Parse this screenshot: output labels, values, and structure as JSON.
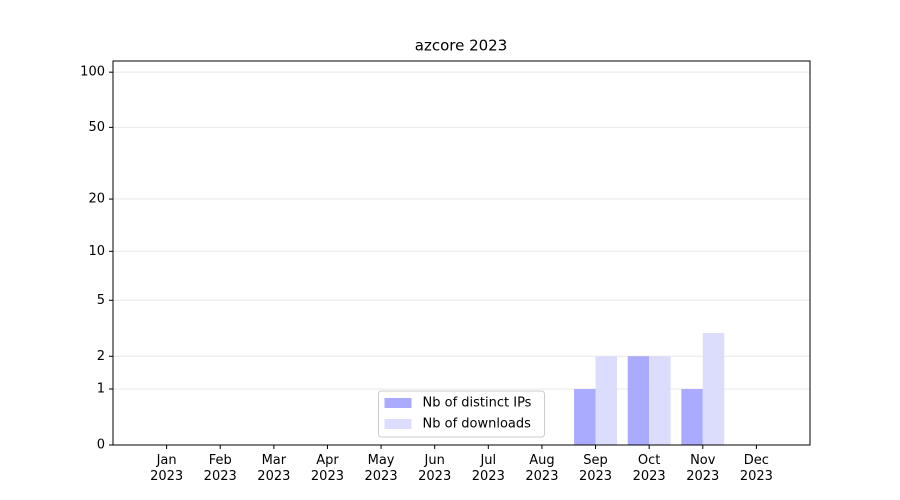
{
  "chart_data": {
    "type": "bar",
    "title": "azcore 2023",
    "categories": [
      "Jan\n2023",
      "Feb\n2023",
      "Mar\n2023",
      "Apr\n2023",
      "May\n2023",
      "Jun\n2023",
      "Jul\n2023",
      "Aug\n2023",
      "Sep\n2023",
      "Oct\n2023",
      "Nov\n2023",
      "Dec\n2023"
    ],
    "series": [
      {
        "name": "Nb of distinct IPs",
        "color": "#aaaaff",
        "values": [
          0,
          0,
          0,
          0,
          0,
          0,
          0,
          0,
          1,
          2,
          1,
          0
        ]
      },
      {
        "name": "Nb of downloads",
        "color": "#dcdcfc",
        "values": [
          0,
          0,
          0,
          0,
          0,
          0,
          0,
          0,
          2,
          2,
          3,
          0
        ]
      }
    ],
    "y_scale": "log1p",
    "ylim": [
      0,
      115
    ],
    "yticks": [
      0,
      1,
      2,
      5,
      10,
      20,
      50,
      100
    ],
    "grid": true,
    "legend": "lower center"
  }
}
